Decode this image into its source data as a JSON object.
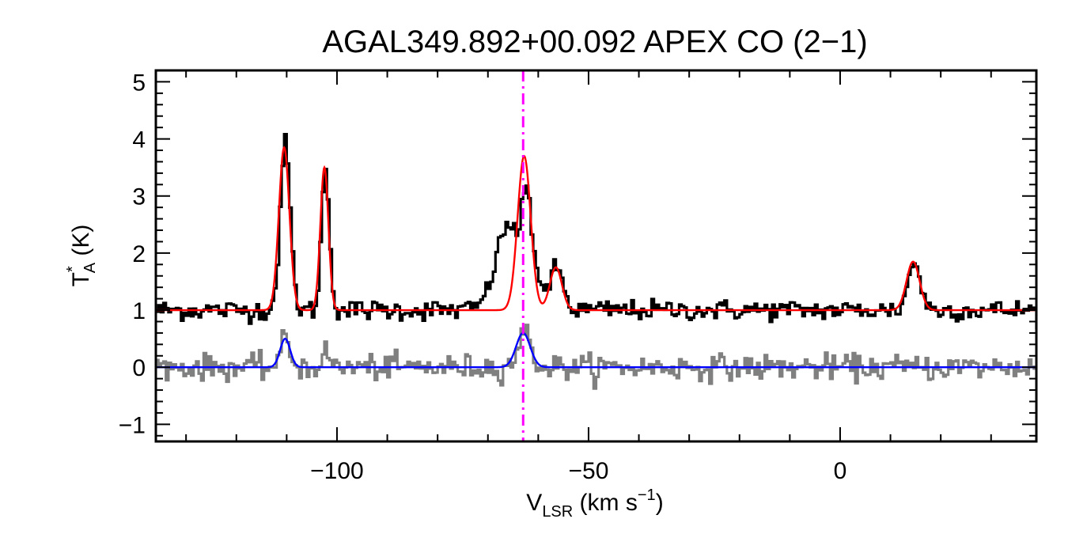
{
  "chart_data": {
    "type": "line",
    "title": "AGAL349.892+00.092  APEX CO (2−1)",
    "xlabel": {
      "base": "V",
      "sub": "LSR",
      "rest": " (km s",
      "sup": "−1",
      "close": ")"
    },
    "ylabel": {
      "base": "T",
      "sup": "*",
      "sub": "A",
      "rest": " (K)"
    },
    "xlim": [
      -136,
      39
    ],
    "ylim": [
      -1.3,
      5.2
    ],
    "x_ticks": [
      {
        "value": -100,
        "label": "−100"
      },
      {
        "value": -50,
        "label": "−50"
      },
      {
        "value": 0,
        "label": "0"
      }
    ],
    "y_ticks": [
      {
        "value": -1,
        "label": "−1"
      },
      {
        "value": 0,
        "label": "0"
      },
      {
        "value": 1,
        "label": "1"
      },
      {
        "value": 2,
        "label": "2"
      },
      {
        "value": 3,
        "label": "3"
      },
      {
        "value": 4,
        "label": "4"
      },
      {
        "value": 5,
        "label": "5"
      }
    ],
    "x_minor_step": 10,
    "y_minor_step": 0.2,
    "vline": {
      "x": -63,
      "color": "#ff00ff"
    },
    "series": [
      {
        "role": "observed-spectrum",
        "color": "#000000",
        "baseline": 1.0,
        "noise": 0.09,
        "components": [
          {
            "center": -110.5,
            "amp": 2.9,
            "sigma": 1.0
          },
          {
            "center": -102.5,
            "amp": 2.45,
            "sigma": 0.8
          },
          {
            "center": -66,
            "amp": 1.5,
            "sigma": 2.6
          },
          {
            "center": -62.5,
            "amp": 1.4,
            "sigma": 0.9
          },
          {
            "center": -60.5,
            "amp": 0.5,
            "sigma": 1.2
          },
          {
            "center": -56.5,
            "amp": 0.75,
            "sigma": 1.2
          },
          {
            "center": 14.5,
            "amp": 0.85,
            "sigma": 1.2
          }
        ]
      },
      {
        "role": "fit",
        "color": "#ff0000",
        "baseline": 1.0,
        "components": [
          {
            "center": -110.5,
            "amp": 2.85,
            "sigma": 1.05
          },
          {
            "center": -102.5,
            "amp": 2.5,
            "sigma": 0.8
          },
          {
            "center": -62.8,
            "amp": 2.7,
            "sigma": 1.3
          },
          {
            "center": -56.5,
            "amp": 0.75,
            "sigma": 1.2
          },
          {
            "center": 14.5,
            "amp": 0.85,
            "sigma": 1.3
          }
        ]
      },
      {
        "role": "residual-spectrum",
        "color": "#808080",
        "baseline": 0.0,
        "noise": 0.11,
        "components": [
          {
            "center": -110.5,
            "amp": 0.45,
            "sigma": 1.0
          },
          {
            "center": -102.5,
            "amp": 0.25,
            "sigma": 0.8
          },
          {
            "center": -63,
            "amp": 0.6,
            "sigma": 1.3
          }
        ]
      },
      {
        "role": "residual-fit",
        "color": "#0000ff",
        "baseline": 0.0,
        "components": [
          {
            "center": -110.3,
            "amp": 0.5,
            "sigma": 1.0
          },
          {
            "center": -63,
            "amp": 0.6,
            "sigma": 1.4
          }
        ]
      }
    ],
    "grid": false,
    "legend": "none"
  }
}
